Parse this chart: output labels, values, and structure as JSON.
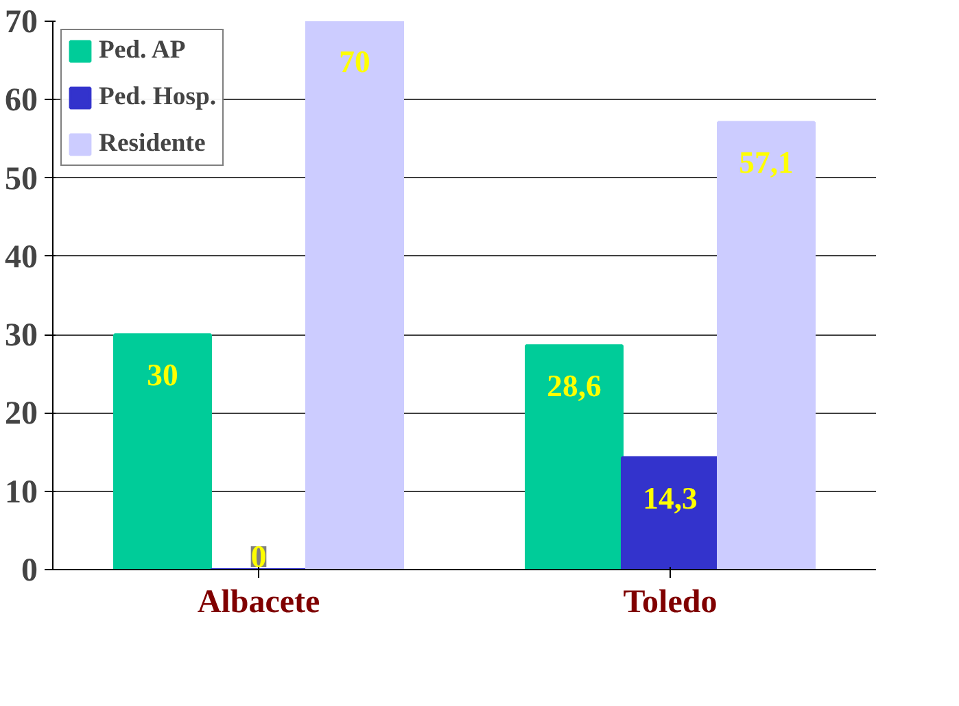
{
  "chart_data": {
    "type": "bar",
    "categories": [
      "Albacete",
      "Toledo"
    ],
    "series": [
      {
        "name": "Ped. AP",
        "color": "#00cc99",
        "values": [
          30,
          28.6
        ],
        "value_labels": [
          "30",
          "28,6"
        ]
      },
      {
        "name": "Ped. Hosp.",
        "color": "#3333cc",
        "values": [
          0,
          14.3
        ],
        "value_labels": [
          "0",
          "14,3"
        ]
      },
      {
        "name": "Residente",
        "color": "#ccccff",
        "values": [
          70,
          57.1
        ],
        "value_labels": [
          "70",
          "57,1"
        ]
      }
    ],
    "ylim": [
      0,
      70
    ],
    "yticks": [
      0,
      10,
      20,
      30,
      40,
      50,
      60,
      70
    ],
    "grid": "y",
    "legend": "top left"
  }
}
